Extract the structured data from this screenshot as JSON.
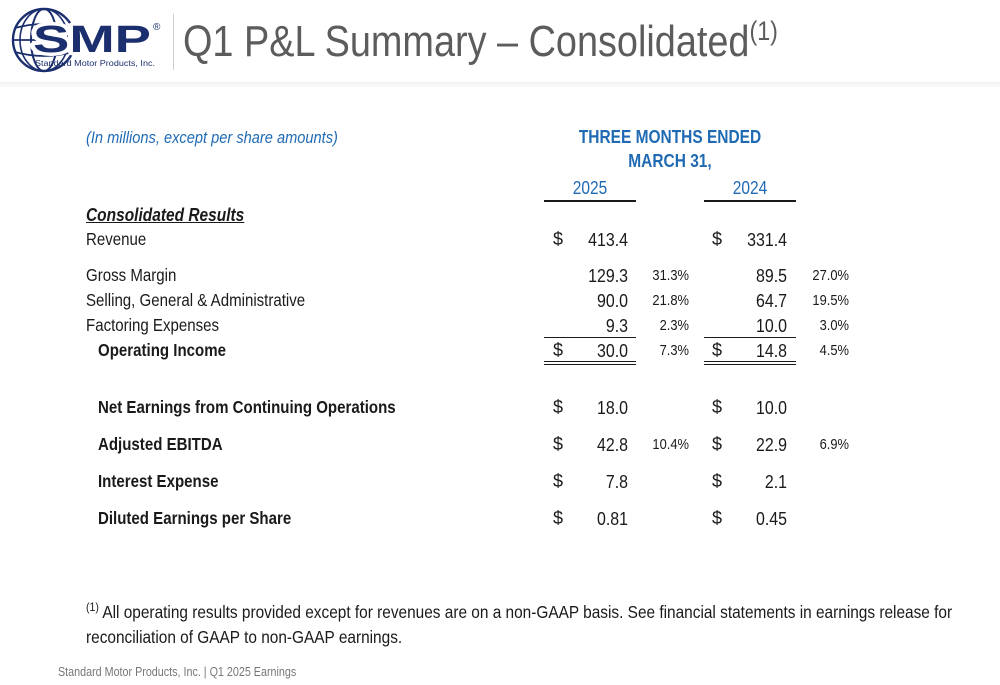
{
  "header": {
    "logo": {
      "wordmark": "SMP",
      "registered": "®",
      "subtitle": "Standard Motor Products, Inc."
    },
    "title": "Q1 P&L Summary – Consolidated",
    "title_footnote_ref": "(1)"
  },
  "table": {
    "units_note": "(In millions, except per share amounts)",
    "period_line1": "THREE MONTHS ENDED",
    "period_line2": "MARCH 31,",
    "year_current": "2025",
    "year_prior": "2024",
    "section_title": "Consolidated Results",
    "rows": [
      {
        "label": "Revenue",
        "cur_dollar": "$",
        "cur_value": "413.4",
        "cur_pct": "",
        "pri_dollar": "$",
        "pri_value": "331.4",
        "pri_pct": ""
      },
      {
        "label": "Gross Margin",
        "cur_dollar": "",
        "cur_value": "129.3",
        "cur_pct": "31.3%",
        "pri_dollar": "",
        "pri_value": "89.5",
        "pri_pct": "27.0%"
      },
      {
        "label": "Selling, General & Administrative",
        "cur_dollar": "",
        "cur_value": "90.0",
        "cur_pct": "21.8%",
        "pri_dollar": "",
        "pri_value": "64.7",
        "pri_pct": "19.5%"
      },
      {
        "label": "Factoring Expenses",
        "cur_dollar": "",
        "cur_value": "9.3",
        "cur_pct": "2.3%",
        "pri_dollar": "",
        "pri_value": "10.0",
        "pri_pct": "3.0%"
      },
      {
        "label": "Operating Income",
        "cur_dollar": "$",
        "cur_value": "30.0",
        "cur_pct": "7.3%",
        "pri_dollar": "$",
        "pri_value": "14.8",
        "pri_pct": "4.5%"
      },
      {
        "label": "Net Earnings from Continuing Operations",
        "cur_dollar": "$",
        "cur_value": "18.0",
        "cur_pct": "",
        "pri_dollar": "$",
        "pri_value": "10.0",
        "pri_pct": ""
      },
      {
        "label": "Adjusted EBITDA",
        "cur_dollar": "$",
        "cur_value": "42.8",
        "cur_pct": "10.4%",
        "pri_dollar": "$",
        "pri_value": "22.9",
        "pri_pct": "6.9%"
      },
      {
        "label": "Interest Expense",
        "cur_dollar": "$",
        "cur_value": "7.8",
        "cur_pct": "",
        "pri_dollar": "$",
        "pri_value": "2.1",
        "pri_pct": ""
      },
      {
        "label": "Diluted Earnings per Share",
        "cur_dollar": "$",
        "cur_value": "0.81",
        "cur_pct": "",
        "pri_dollar": "$",
        "pri_value": "0.45",
        "pri_pct": ""
      }
    ]
  },
  "footnote": {
    "ref": "(1)",
    "text": "All operating results provided except for revenues are on a non-GAAP basis. See financial statements in earnings release for reconciliation of GAAP to non-GAAP earnings."
  },
  "footer": {
    "text": "Standard Motor Products, Inc. | Q1 2025 Earnings"
  },
  "colors": {
    "brand_navy": "#1b2f6e",
    "accent_blue": "#1f6ab3",
    "title_gray": "#5c5c5c"
  }
}
